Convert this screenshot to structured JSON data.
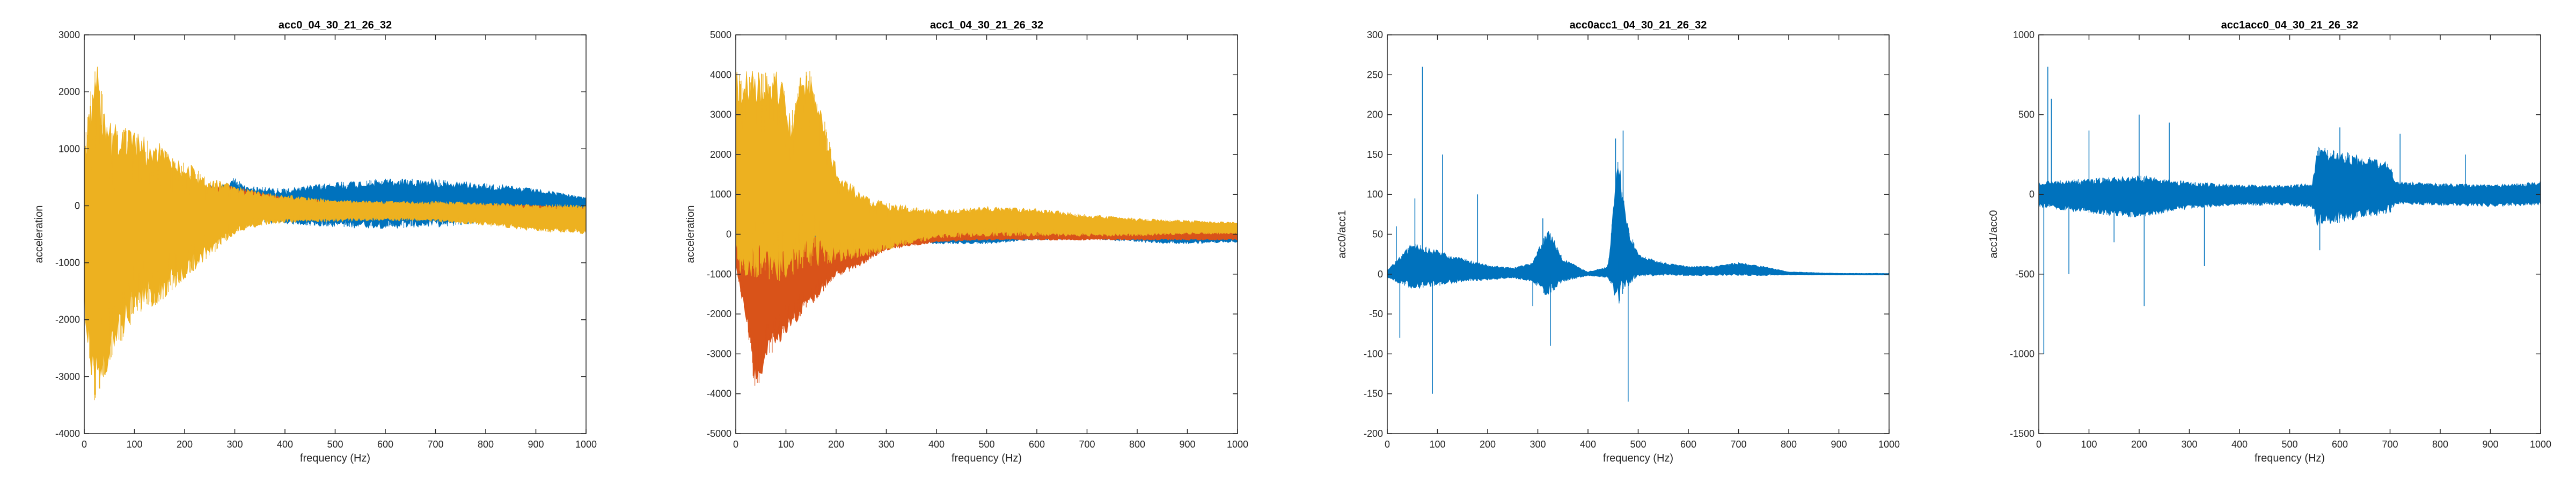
{
  "colors": {
    "blue": "#0072BD",
    "orange": "#D95319",
    "yellow": "#EDB120",
    "axis": "#262626"
  },
  "chart_data": [
    {
      "type": "line",
      "title": "acc0_04_30_21_26_32",
      "xlabel": "frequency (Hz)",
      "ylabel": "acceleration",
      "xlim": [
        0,
        1000
      ],
      "ylim": [
        -4000,
        3000
      ],
      "xticks": [
        0,
        100,
        200,
        300,
        400,
        500,
        600,
        700,
        800,
        900,
        1000
      ],
      "yticks": [
        -4000,
        -3000,
        -2000,
        -1000,
        0,
        1000,
        2000,
        3000
      ],
      "grid": false,
      "series": [
        {
          "color": "#0072BD",
          "style": "band",
          "x": [
            0,
            100,
            200,
            280,
            300,
            320,
            400,
            500,
            600,
            700,
            800,
            900,
            1000
          ],
          "upper": [
            300,
            250,
            320,
            380,
            500,
            350,
            300,
            420,
            480,
            470,
            400,
            300,
            150
          ],
          "lower": [
            -300,
            -250,
            -300,
            -350,
            -330,
            -300,
            -320,
            -380,
            -400,
            -380,
            -300,
            -200,
            -120
          ]
        },
        {
          "color": "#D95319",
          "style": "band",
          "x": [
            0,
            100,
            200,
            280,
            320,
            400,
            500,
            600,
            700,
            800,
            900,
            1000
          ],
          "upper": [
            300,
            250,
            300,
            380,
            300,
            150,
            70,
            40,
            30,
            20,
            10,
            -30
          ],
          "lower": [
            -300,
            -250,
            -280,
            -300,
            -200,
            -180,
            -160,
            -130,
            -130,
            -130,
            -130,
            -130
          ]
        },
        {
          "color": "#EDB120",
          "style": "band",
          "x": [
            0,
            20,
            50,
            100,
            150,
            200,
            250,
            300,
            350,
            400,
            500,
            600,
            700,
            800,
            900,
            1000
          ],
          "upper": [
            1000,
            2700,
            1500,
            1300,
            1100,
            800,
            500,
            350,
            250,
            200,
            100,
            80,
            80,
            60,
            30,
            20
          ],
          "lower": [
            -1800,
            -3700,
            -2800,
            -2000,
            -1700,
            -1300,
            -900,
            -500,
            -350,
            -300,
            -280,
            -260,
            -280,
            -350,
            -450,
            -500
          ]
        }
      ]
    },
    {
      "type": "line",
      "title": "acc1_04_30_21_26_32",
      "xlabel": "frequency (Hz)",
      "ylabel": "acceleration",
      "xlim": [
        0,
        1000
      ],
      "ylim": [
        -5000,
        5000
      ],
      "xticks": [
        0,
        100,
        200,
        300,
        400,
        500,
        600,
        700,
        800,
        900,
        1000
      ],
      "yticks": [
        -5000,
        -4000,
        -3000,
        -2000,
        -1000,
        0,
        1000,
        2000,
        3000,
        4000,
        5000
      ],
      "grid": false,
      "series": [
        {
          "color": "#0072BD",
          "style": "band",
          "x": [
            0,
            100,
            200,
            300,
            400,
            500,
            600,
            700,
            800,
            900,
            1000
          ],
          "upper": [
            100,
            100,
            100,
            100,
            120,
            180,
            250,
            280,
            250,
            200,
            200
          ],
          "lower": [
            -100,
            -100,
            -100,
            -150,
            -250,
            -250,
            -150,
            -120,
            -200,
            -250,
            -200
          ]
        },
        {
          "color": "#D95319",
          "style": "band",
          "x": [
            0,
            20,
            40,
            60,
            100,
            150,
            200,
            250,
            300,
            400,
            500,
            600,
            700,
            800,
            900,
            1000
          ],
          "upper": [
            100,
            100,
            100,
            100,
            100,
            100,
            100,
            100,
            100,
            100,
            100,
            100,
            100,
            100,
            100,
            100
          ],
          "lower": [
            -800,
            -2200,
            -4100,
            -3200,
            -2500,
            -1800,
            -1100,
            -800,
            -400,
            -200,
            -150,
            -150,
            -150,
            -150,
            -150,
            -150
          ]
        },
        {
          "color": "#EDB120",
          "style": "band",
          "x": [
            0,
            90,
            110,
            125,
            150,
            175,
            200,
            250,
            300,
            400,
            500,
            600,
            700,
            800,
            900,
            1000
          ],
          "upper": [
            4100,
            4100,
            2900,
            4100,
            4100,
            3000,
            1700,
            1000,
            800,
            600,
            700,
            650,
            500,
            400,
            350,
            300
          ],
          "lower": [
            -1000,
            -1200,
            -1100,
            -900,
            -800,
            -800,
            -700,
            -600,
            -400,
            -100,
            -50,
            -50,
            -50,
            -50,
            0,
            0
          ]
        }
      ]
    },
    {
      "type": "line",
      "title": "acc0acc1_04_30_21_26_32",
      "xlabel": "frequency (Hz)",
      "ylabel": "acc0/acc1",
      "xlim": [
        0,
        1000
      ],
      "ylim": [
        -200,
        300
      ],
      "xticks": [
        0,
        100,
        200,
        300,
        400,
        500,
        600,
        700,
        800,
        900,
        1000
      ],
      "yticks": [
        -200,
        -150,
        -100,
        -50,
        0,
        50,
        100,
        150,
        200,
        250,
        300
      ],
      "grid": false,
      "series": [
        {
          "color": "#0072BD",
          "style": "band",
          "x": [
            0,
            50,
            100,
            150,
            200,
            250,
            290,
            320,
            350,
            400,
            440,
            460,
            480,
            500,
            550,
            600,
            650,
            700,
            750,
            800,
            850,
            900,
            1000
          ],
          "upper": [
            5,
            40,
            30,
            20,
            12,
            8,
            15,
            60,
            20,
            3,
            10,
            150,
            60,
            25,
            15,
            10,
            10,
            15,
            10,
            3,
            2,
            1,
            1
          ],
          "lower": [
            -5,
            -20,
            -15,
            -10,
            -8,
            -5,
            -10,
            -30,
            -10,
            -2,
            -5,
            -40,
            -15,
            -3,
            -2,
            -2,
            -2,
            -2,
            -2,
            -1,
            -1,
            -1,
            -1
          ]
        },
        {
          "color": "#0072BD",
          "style": "spikes",
          "x": [
            18,
            25,
            55,
            70,
            90,
            110,
            180,
            290,
            310,
            325,
            455,
            470,
            480
          ],
          "y": [
            60,
            -80,
            95,
            260,
            -150,
            150,
            100,
            -40,
            70,
            -90,
            170,
            180,
            -160
          ]
        }
      ]
    },
    {
      "type": "line",
      "title": "acc1acc0_04_30_21_26_32",
      "xlabel": "frequency (Hz)",
      "ylabel": "acc1/acc0",
      "xlim": [
        0,
        1000
      ],
      "ylim": [
        -1500,
        1000
      ],
      "xticks": [
        0,
        100,
        200,
        300,
        400,
        500,
        600,
        700,
        800,
        900,
        1000
      ],
      "yticks": [
        -1500,
        -1000,
        -500,
        0,
        500,
        1000
      ],
      "grid": false,
      "series": [
        {
          "color": "#0072BD",
          "style": "band",
          "x": [
            0,
            100,
            200,
            300,
            400,
            500,
            545,
            555,
            600,
            700,
            710,
            800,
            900,
            1000
          ],
          "upper": [
            80,
            100,
            120,
            80,
            60,
            60,
            70,
            300,
            280,
            200,
            80,
            70,
            60,
            80
          ],
          "lower": [
            -80,
            -120,
            -150,
            -90,
            -70,
            -70,
            -90,
            -200,
            -180,
            -120,
            -60,
            -70,
            -80,
            -70
          ]
        },
        {
          "color": "#0072BD",
          "style": "spikes",
          "x": [
            10,
            18,
            25,
            60,
            100,
            150,
            200,
            210,
            260,
            330,
            560,
            600,
            720,
            850
          ],
          "y": [
            -1000,
            800,
            600,
            -500,
            400,
            -300,
            500,
            -700,
            450,
            -450,
            -350,
            420,
            380,
            250
          ]
        }
      ]
    }
  ]
}
